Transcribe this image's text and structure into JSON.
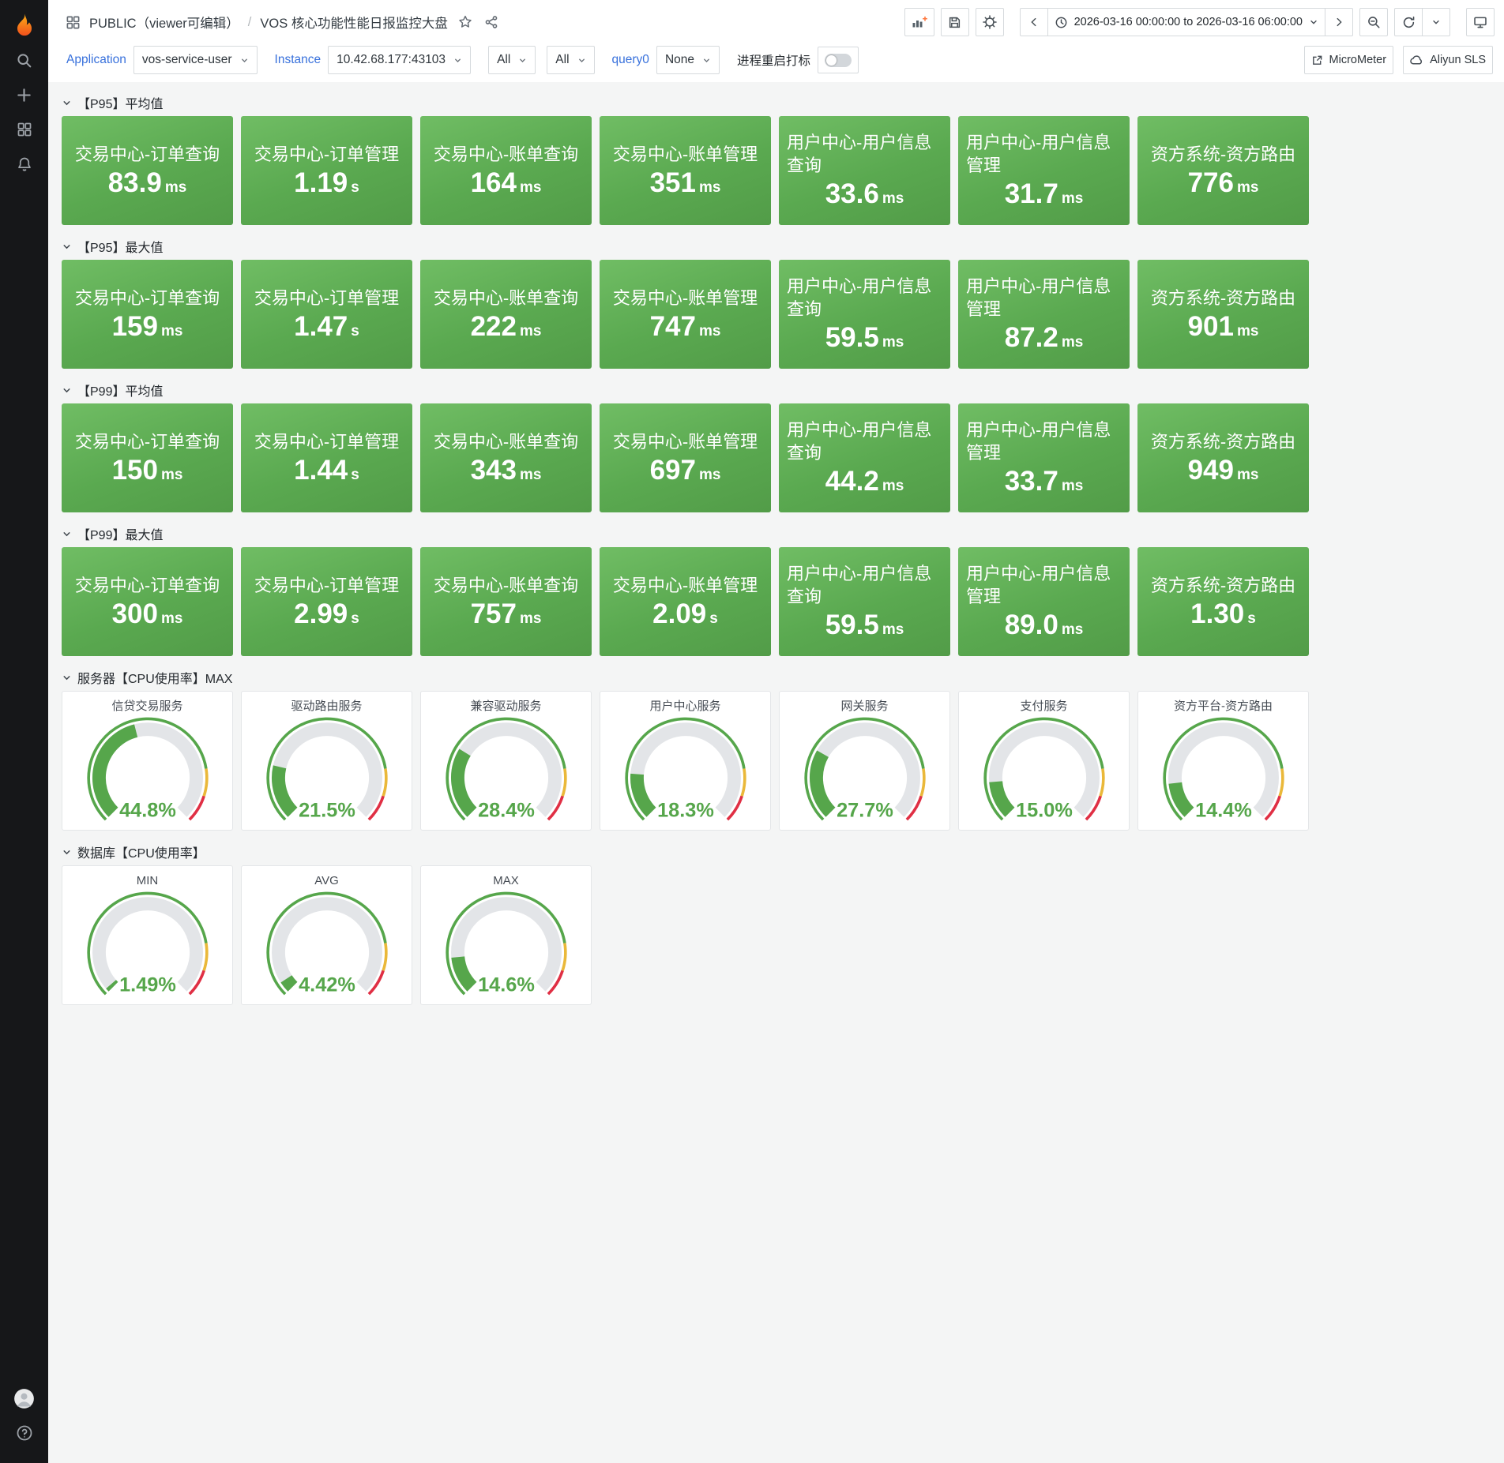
{
  "sidebar": {
    "icons": [
      "grafana-logo",
      "search",
      "add",
      "dashboards",
      "alerts",
      "avatar",
      "help"
    ]
  },
  "header": {
    "breadcrumb": {
      "section": "PUBLIC（viewer可编辑）",
      "separator": "/",
      "title": "VOS 核心功能性能日报监控大盘"
    },
    "time_range": "2026-03-16 00:00:00 to 2026-03-16 06:00:00"
  },
  "toolbar": {
    "micrometer_label": "MicroMeter",
    "aliyun_label": "Aliyun SLS"
  },
  "filters": {
    "application": {
      "label": "Application",
      "value": "vos-service-user"
    },
    "instance": {
      "label": "Instance",
      "value": "10.42.68.177:43103"
    },
    "filter_a": {
      "value": "All"
    },
    "filter_b": {
      "value": "All"
    },
    "query": {
      "label": "query0",
      "value": "None"
    },
    "restart_toggle": {
      "label": "进程重启打标",
      "state": "off"
    }
  },
  "colors": {
    "green": "#56a64b",
    "gauge_track": "#e3e5e8",
    "threshold_yellow": "#eab839",
    "threshold_red": "#e02f44"
  },
  "gauge_thresholds": [
    80,
    90
  ],
  "rows": [
    {
      "title": "【P95】平均值",
      "type": "stat",
      "panels": [
        {
          "title": "交易中心-订单查询",
          "value": "83.9",
          "unit": "ms"
        },
        {
          "title": "交易中心-订单管理",
          "value": "1.19",
          "unit": "s"
        },
        {
          "title": "交易中心-账单查询",
          "value": "164",
          "unit": "ms"
        },
        {
          "title": "交易中心-账单管理",
          "value": "351",
          "unit": "ms"
        },
        {
          "title": "用户中心-用户信息查询",
          "value": "33.6",
          "unit": "ms"
        },
        {
          "title": "用户中心-用户信息管理",
          "value": "31.7",
          "unit": "ms"
        },
        {
          "title": "资方系统-资方路由",
          "value": "776",
          "unit": "ms"
        }
      ]
    },
    {
      "title": "【P95】最大值",
      "type": "stat",
      "panels": [
        {
          "title": "交易中心-订单查询",
          "value": "159",
          "unit": "ms"
        },
        {
          "title": "交易中心-订单管理",
          "value": "1.47",
          "unit": "s"
        },
        {
          "title": "交易中心-账单查询",
          "value": "222",
          "unit": "ms"
        },
        {
          "title": "交易中心-账单管理",
          "value": "747",
          "unit": "ms"
        },
        {
          "title": "用户中心-用户信息查询",
          "value": "59.5",
          "unit": "ms"
        },
        {
          "title": "用户中心-用户信息管理",
          "value": "87.2",
          "unit": "ms"
        },
        {
          "title": "资方系统-资方路由",
          "value": "901",
          "unit": "ms"
        }
      ]
    },
    {
      "title": "【P99】平均值",
      "type": "stat",
      "panels": [
        {
          "title": "交易中心-订单查询",
          "value": "150",
          "unit": "ms"
        },
        {
          "title": "交易中心-订单管理",
          "value": "1.44",
          "unit": "s"
        },
        {
          "title": "交易中心-账单查询",
          "value": "343",
          "unit": "ms"
        },
        {
          "title": "交易中心-账单管理",
          "value": "697",
          "unit": "ms"
        },
        {
          "title": "用户中心-用户信息查询",
          "value": "44.2",
          "unit": "ms"
        },
        {
          "title": "用户中心-用户信息管理",
          "value": "33.7",
          "unit": "ms"
        },
        {
          "title": "资方系统-资方路由",
          "value": "949",
          "unit": "ms"
        }
      ]
    },
    {
      "title": "【P99】最大值",
      "type": "stat",
      "panels": [
        {
          "title": "交易中心-订单查询",
          "value": "300",
          "unit": "ms"
        },
        {
          "title": "交易中心-订单管理",
          "value": "2.99",
          "unit": "s"
        },
        {
          "title": "交易中心-账单查询",
          "value": "757",
          "unit": "ms"
        },
        {
          "title": "交易中心-账单管理",
          "value": "2.09",
          "unit": "s"
        },
        {
          "title": "用户中心-用户信息查询",
          "value": "59.5",
          "unit": "ms"
        },
        {
          "title": "用户中心-用户信息管理",
          "value": "89.0",
          "unit": "ms"
        },
        {
          "title": "资方系统-资方路由",
          "value": "1.30",
          "unit": "s"
        }
      ]
    },
    {
      "title": "服务器【CPU使用率】MAX",
      "type": "gauge",
      "panels": [
        {
          "title": "信贷交易服务",
          "value": 44.8,
          "display": "44.8%"
        },
        {
          "title": "驱动路由服务",
          "value": 21.5,
          "display": "21.5%"
        },
        {
          "title": "兼容驱动服务",
          "value": 28.4,
          "display": "28.4%"
        },
        {
          "title": "用户中心服务",
          "value": 18.3,
          "display": "18.3%"
        },
        {
          "title": "网关服务",
          "value": 27.7,
          "display": "27.7%"
        },
        {
          "title": "支付服务",
          "value": 15.0,
          "display": "15.0%"
        },
        {
          "title": "资方平台-资方路由",
          "value": 14.4,
          "display": "14.4%"
        }
      ]
    },
    {
      "title": "数据库【CPU使用率】",
      "type": "gauge",
      "panels": [
        {
          "title": "MIN",
          "value": 1.49,
          "display": "1.49%"
        },
        {
          "title": "AVG",
          "value": 4.42,
          "display": "4.42%"
        },
        {
          "title": "MAX",
          "value": 14.6,
          "display": "14.6%"
        }
      ]
    }
  ]
}
